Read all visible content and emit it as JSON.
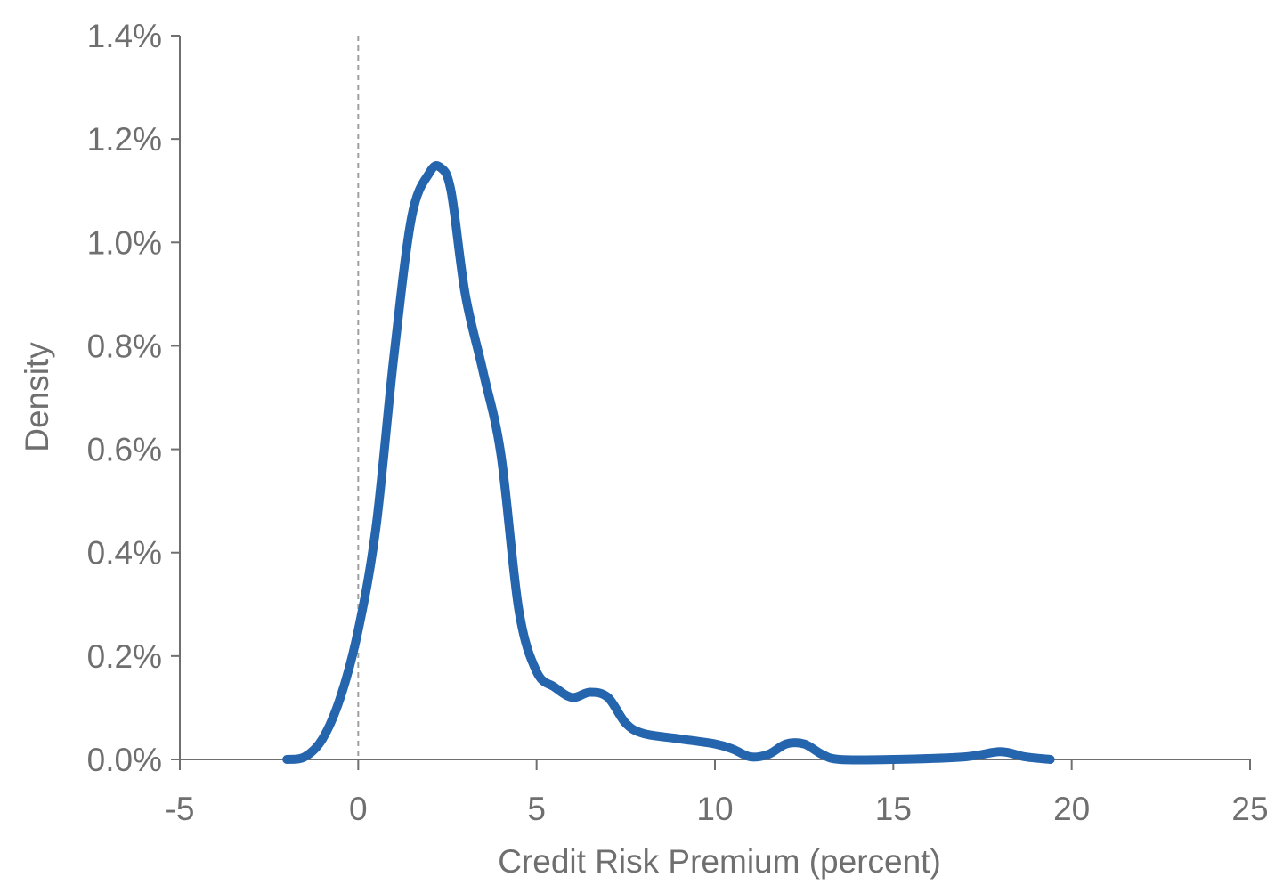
{
  "chart_data": {
    "type": "line",
    "title": "",
    "xlabel": "Credit Risk Premium (percent)",
    "ylabel": "Density",
    "xlim": [
      -5,
      25
    ],
    "ylim": [
      0,
      0.014
    ],
    "x_ticks": [
      -5,
      0,
      5,
      10,
      15,
      20,
      25
    ],
    "x_tick_labels": [
      "-5",
      "0",
      "5",
      "10",
      "15",
      "20",
      "25"
    ],
    "y_ticks": [
      0,
      0.002,
      0.004,
      0.006,
      0.008,
      0.01,
      0.012,
      0.014
    ],
    "y_tick_labels": [
      "0.0%",
      "0.2%",
      "0.4%",
      "0.6%",
      "0.8%",
      "1.0%",
      "1.2%",
      "1.4%"
    ],
    "grid": false,
    "reference_line": {
      "axis": "x",
      "value": 0,
      "style": "dashed",
      "color": "#a0a0a0"
    },
    "series": [
      {
        "color": "#2565ae",
        "x": [
          -2.0,
          -1.5,
          -1.0,
          -0.5,
          0.0,
          0.5,
          1.0,
          1.5,
          2.0,
          2.3,
          2.6,
          3.0,
          3.5,
          4.0,
          4.5,
          5.0,
          5.5,
          6.0,
          6.5,
          7.0,
          7.5,
          8.0,
          9.0,
          10.0,
          10.5,
          11.0,
          11.5,
          12.0,
          12.5,
          13.0,
          13.5,
          15.0,
          17.0,
          18.0,
          18.7,
          19.4
        ],
        "y": [
          0.0,
          5e-05,
          0.0004,
          0.0012,
          0.0025,
          0.0045,
          0.0078,
          0.0105,
          0.01135,
          0.01145,
          0.011,
          0.009,
          0.0075,
          0.0059,
          0.0029,
          0.0017,
          0.0014,
          0.0012,
          0.0013,
          0.0012,
          0.0007,
          0.0005,
          0.0004,
          0.0003,
          0.0002,
          5e-05,
          0.0001,
          0.0003,
          0.0003,
          0.0001,
          0.0,
          0.0,
          5e-05,
          0.00015,
          5e-05,
          0.0
        ]
      }
    ]
  },
  "colors": {
    "axis": "#6f6f6f",
    "text": "#6f6f6f",
    "line": "#2565ae",
    "reference": "#a0a0a0"
  }
}
